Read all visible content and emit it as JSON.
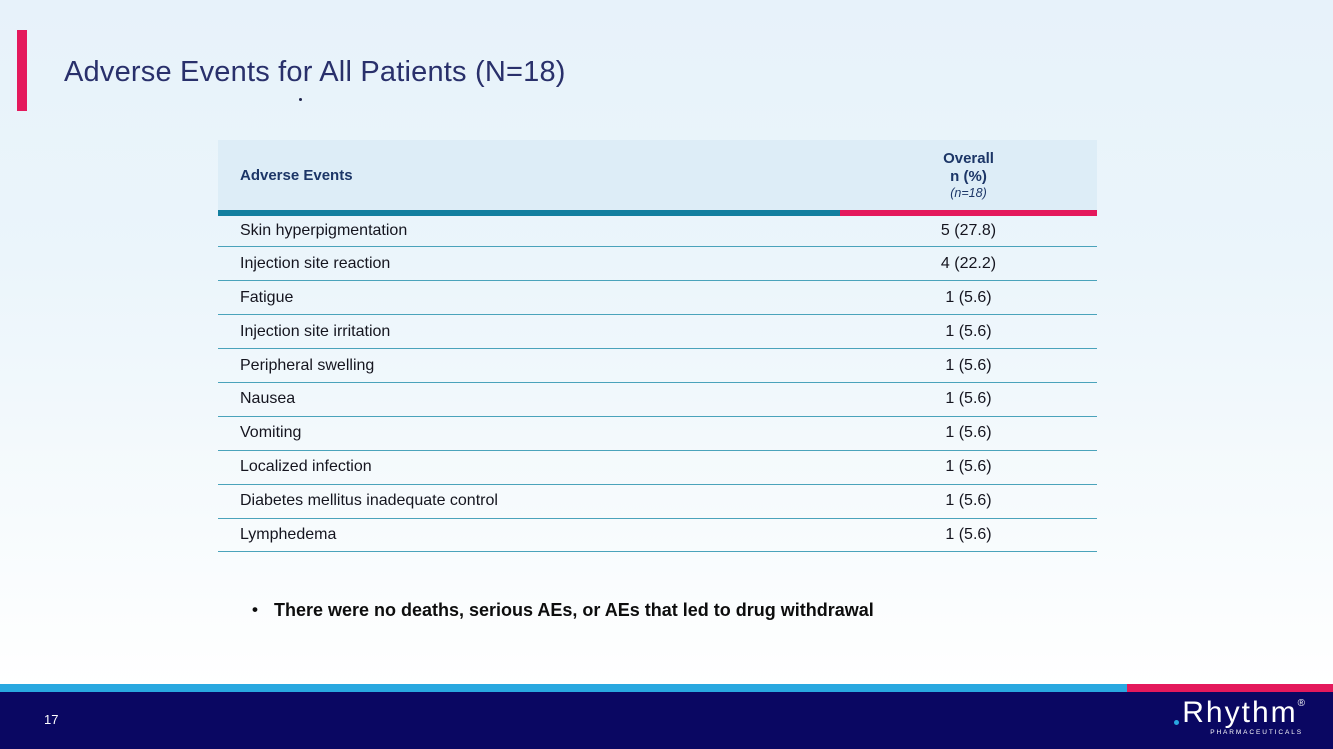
{
  "colors": {
    "accent_pink": "#e4195c",
    "teal_bar": "#137f9f",
    "row_separator_teal": "#4aa3bb",
    "header_bg": "#ddedf7",
    "title_navy": "#29306b",
    "header_text_navy": "#1c3667",
    "footer_navy": "#0a0762",
    "footer_cyan": "#29a8e0"
  },
  "slide": {
    "title": "Adverse Events for All Patients (N=18)"
  },
  "table": {
    "headers": {
      "events": "Adverse Events",
      "overall_line1": "Overall",
      "overall_line2": "n (%)",
      "overall_line3": "(n=18)"
    },
    "rows": [
      {
        "event": "Skin hyperpigmentation",
        "value": "5 (27.8)"
      },
      {
        "event": "Injection site reaction",
        "value": "4 (22.2)"
      },
      {
        "event": "Fatigue",
        "value": "1 (5.6)"
      },
      {
        "event": "Injection site irritation",
        "value": "1 (5.6)"
      },
      {
        "event": "Peripheral swelling",
        "value": "1 (5.6)"
      },
      {
        "event": "Nausea",
        "value": "1 (5.6)"
      },
      {
        "event": "Vomiting",
        "value": "1 (5.6)"
      },
      {
        "event": "Localized infection",
        "value": "1 (5.6)"
      },
      {
        "event": "Diabetes mellitus inadequate control",
        "value": "1 (5.6)"
      },
      {
        "event": "Lymphedema",
        "value": "1 (5.6)"
      }
    ]
  },
  "bullet": {
    "marker": "•",
    "text": "There were no deaths, serious AEs, or AEs that led to drug withdrawal"
  },
  "footer": {
    "page_number": "17",
    "logo": {
      "name": "Rhythm",
      "registered": "®",
      "subtext": "PHARMACEUTICALS"
    }
  }
}
